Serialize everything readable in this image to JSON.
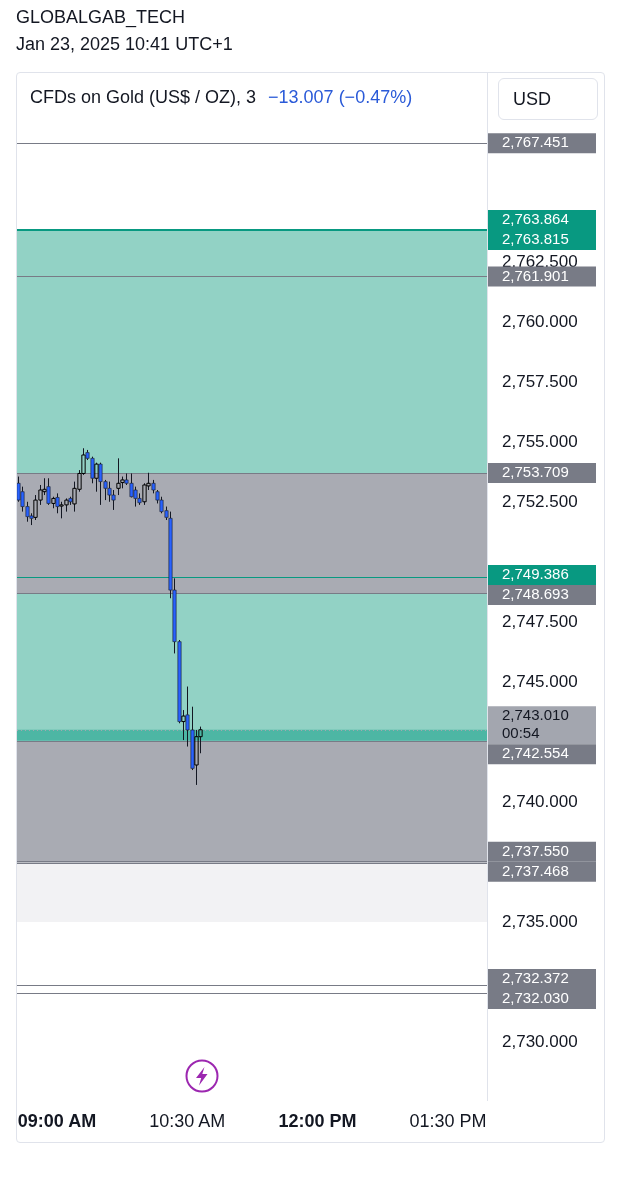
{
  "chart_data": {
    "type": "candlestick",
    "title": "CFDs on Gold (US$ / OZ), 3",
    "subtitle": "−13.007 (−0.47%)",
    "ylabel": "USD",
    "annotations": [
      "GLOBALGAB_TECH",
      "Jan 23, 2025 10:41 UTC+1"
    ],
    "x": [
      8.55,
      8.6,
      8.65,
      8.7,
      8.75,
      8.8,
      8.85,
      8.9,
      8.95,
      9,
      9.05,
      9.1,
      9.15,
      9.2,
      9.25,
      9.3,
      9.35,
      9.4,
      9.45,
      9.5,
      9.55,
      9.6,
      9.65,
      9.7,
      9.75,
      9.8,
      9.85,
      9.9,
      9.95,
      10,
      10.05,
      10.1,
      10.15,
      10.2,
      10.25,
      10.3,
      10.35,
      10.4,
      10.45,
      10.5,
      10.55,
      10.6,
      10.65
    ],
    "ohlc": [
      [
        2753.28,
        2753.56,
        2752.51,
        2752.58
      ],
      [
        2752.93,
        2753.14,
        2752.1,
        2752.31
      ],
      [
        2752.31,
        2752.51,
        2751.68,
        2751.89
      ],
      [
        2751.92,
        2752.03,
        2751.54,
        2751.82
      ],
      [
        2751.86,
        2752.79,
        2751.75,
        2752.58
      ],
      [
        2752.58,
        2753.21,
        2752.38,
        2753.0
      ],
      [
        2752.93,
        2753.49,
        2752.79,
        2753.03
      ],
      [
        2753.14,
        2753.49,
        2752.38,
        2752.44
      ],
      [
        2752.44,
        2752.72,
        2752.24,
        2752.65
      ],
      [
        2752.69,
        2752.86,
        2752.03,
        2752.31
      ],
      [
        2752.33,
        2752.51,
        2751.82,
        2752.38
      ],
      [
        2752.38,
        2752.65,
        2752.1,
        2752.58
      ],
      [
        2752.65,
        2752.72,
        2752.38,
        2752.51
      ],
      [
        2752.42,
        2753.35,
        2752.1,
        2753.07
      ],
      [
        2753.03,
        2753.83,
        2752.93,
        2753.69
      ],
      [
        2753.69,
        2754.74,
        2753.63,
        2754.46
      ],
      [
        2754.56,
        2754.67,
        2754.25,
        2754.32
      ],
      [
        2754.32,
        2754.39,
        2753.28,
        2753.49
      ],
      [
        2753.49,
        2754.14,
        2752.93,
        2754.08
      ],
      [
        2754.08,
        2754.14,
        2752.38,
        2753.35
      ],
      [
        2753.35,
        2753.42,
        2752.58,
        2753.07
      ],
      [
        2753.07,
        2753.35,
        2752.51,
        2752.79
      ],
      [
        2752.79,
        2753.0,
        2752.17,
        2752.58
      ],
      [
        2753.07,
        2754.32,
        2752.79,
        2753.28
      ],
      [
        2753.31,
        2753.56,
        2753.07,
        2753.42
      ],
      [
        2753.42,
        2753.69,
        2753.21,
        2753.28
      ],
      [
        2753.28,
        2753.69,
        2752.69,
        2752.72
      ],
      [
        2753.0,
        2753.14,
        2752.31,
        2752.65
      ],
      [
        2752.65,
        2752.86,
        2752.38,
        2752.47
      ],
      [
        2752.51,
        2753.28,
        2752.38,
        2753.21
      ],
      [
        2753.17,
        2753.72,
        2753.0,
        2753.28
      ],
      [
        2753.28,
        2753.42,
        2752.86,
        2753.0
      ],
      [
        2752.93,
        2753.0,
        2752.44,
        2752.58
      ],
      [
        2752.58,
        2752.72,
        2752.03,
        2752.1
      ],
      [
        2752.14,
        2752.31,
        2751.75,
        2751.86
      ],
      [
        2751.82,
        2752.1,
        2748.49,
        2748.83
      ],
      [
        2748.83,
        2749.32,
        2746.19,
        2746.68
      ],
      [
        2746.68,
        2746.75,
        2743.28,
        2743.35
      ],
      [
        2743.35,
        2743.83,
        2742.58,
        2743.58
      ],
      [
        2743.63,
        2744.81,
        2742.31,
        2743.0
      ],
      [
        2743.0,
        2743.97,
        2741.33,
        2741.4
      ],
      [
        2741.54,
        2743.0,
        2740.71,
        2742.72
      ],
      [
        2742.72,
        2743.14,
        2742.03,
        2743.01
      ]
    ],
    "colors": [
      "#2962ff",
      "#2962ff",
      "#2962ff",
      "#2962ff",
      "#000000",
      "#000000",
      "#000000",
      "#2962ff",
      "#000000",
      "#2962ff",
      "#000000",
      "#000000",
      "#2962ff",
      "#000000",
      "#000000",
      "#000000",
      "#2962ff",
      "#2962ff",
      "#000000",
      "#2962ff",
      "#2962ff",
      "#2962ff",
      "#2962ff",
      "#000000",
      "#000000",
      "#2962ff",
      "#2962ff",
      "#2962ff",
      "#2962ff",
      "#000000",
      "#000000",
      "#2962ff",
      "#2962ff",
      "#2962ff",
      "#2962ff",
      "#2962ff",
      "#2962ff",
      "#2962ff",
      "#000000",
      "#2962ff",
      "#2962ff",
      "#000000",
      "#000000"
    ],
    "xlim": [
      8.54,
      13.95
    ],
    "xticks": [
      {
        "value": 9,
        "label": "09:00 AM"
      },
      {
        "value": 10.5,
        "label": "10:30 AM"
      },
      {
        "value": 12,
        "label": "12:00 PM"
      },
      {
        "value": 13.5,
        "label": "01:30 PM"
      }
    ],
    "ylim": [
      2727.58,
      2770.42
    ],
    "yticks": [
      {
        "value": 2730,
        "label": "2,730.000"
      },
      {
        "value": 2735,
        "label": "2,735.000"
      },
      {
        "value": 2740,
        "label": "2,740.000"
      },
      {
        "value": 2745,
        "label": "2,745.000"
      },
      {
        "value": 2747.5,
        "label": "2,747.500"
      },
      {
        "value": 2752.5,
        "label": "2,752.500"
      },
      {
        "value": 2755,
        "label": "2,755.000"
      },
      {
        "value": 2757.5,
        "label": "2,757.500"
      },
      {
        "value": 2760,
        "label": "2,760.000"
      },
      {
        "value": 2762.5,
        "label": "2,762.500"
      }
    ],
    "bands": [
      {
        "axis": "y",
        "from": 2735.0,
        "to": 2744.05,
        "color": "#f2f2f4"
      },
      {
        "axis": "y",
        "from": 2742.554,
        "to": 2763.864,
        "color": "#92d2c5"
      },
      {
        "axis": "y",
        "from": 2737.468,
        "to": 2742.554,
        "color": "#a9abb3"
      },
      {
        "axis": "y",
        "from": 2742.554,
        "to": 2743.01,
        "color": "#4db6a4"
      },
      {
        "axis": "y",
        "from": 2748.693,
        "to": 2753.709,
        "color": "#a9abb3"
      }
    ],
    "ref_lines": [
      {
        "axis": "y",
        "value": 2767.451,
        "label": "2,767.451",
        "color": "#787b86"
      },
      {
        "axis": "y",
        "value": 2763.864,
        "label": "2,763.864",
        "color": "#089981"
      },
      {
        "axis": "y",
        "value": 2763.815,
        "label": "2,763.815",
        "color": "#089981"
      },
      {
        "axis": "y",
        "value": 2761.901,
        "label": "2,761.901",
        "color": "#787b86"
      },
      {
        "axis": "y",
        "value": 2753.709,
        "label": "2,753.709",
        "color": "#787b86"
      },
      {
        "axis": "y",
        "value": 2749.386,
        "label": "2,749.386",
        "color": "#089981"
      },
      {
        "axis": "y",
        "value": 2748.693,
        "label": "2,748.693",
        "color": "#787b86"
      },
      {
        "axis": "y",
        "value": 2743.01,
        "label": "2,743.010\n00:54",
        "color": "#a3a6af",
        "line_style": "dotted"
      },
      {
        "axis": "y",
        "value": 2742.554,
        "label": "2,742.554",
        "color": "#787b86"
      },
      {
        "axis": "y",
        "value": 2737.55,
        "label": "2,737.550",
        "color": "#787b86"
      },
      {
        "axis": "y",
        "value": 2737.468,
        "label": "2,737.468",
        "color": "#787b86"
      },
      {
        "axis": "y",
        "value": 2732.372,
        "label": "2,732.372",
        "color": "#787b86"
      },
      {
        "axis": "y",
        "value": 2732.03,
        "label": "2,732.030",
        "color": "#787b86"
      }
    ],
    "grid": false
  }
}
